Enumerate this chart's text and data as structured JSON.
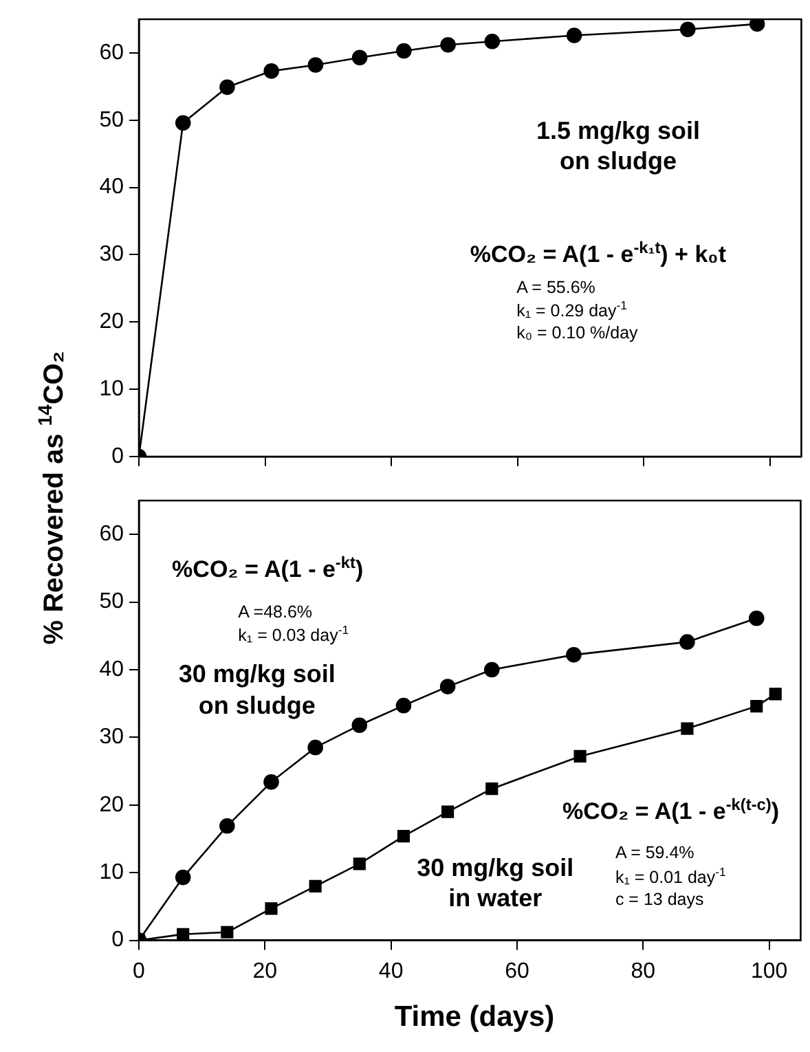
{
  "chart_data": [
    {
      "type": "line",
      "ylabel": "% Recovered as $^{14}$CO₂",
      "xlim": [
        0,
        105
      ],
      "xticks": [
        0,
        20,
        40,
        60,
        80,
        100
      ],
      "ylim": [
        0,
        65
      ],
      "yticks": [
        0,
        10,
        20,
        30,
        40,
        50,
        60
      ],
      "tick_labels": "y",
      "grid": false,
      "legend": false,
      "line_style": "solid",
      "annotations": [
        "1.5 mg/kg soil\non sludge",
        "%CO₂ = A(1 - e$^{-k₁t}$) + k₀t",
        "A = 55.6%\nk₁ = 0.29 day$^{-1}$\nk₀ = 0.10 %/day"
      ],
      "series": [
        {
          "color": "#000000",
          "marker": "circle",
          "x": [
            0,
            7,
            14,
            21,
            28,
            35,
            42,
            49,
            56,
            69,
            87,
            98
          ],
          "values": [
            0,
            49.6,
            54.9,
            57.3,
            58.2,
            59.3,
            60.3,
            61.2,
            61.7,
            62.6,
            63.5,
            64.3
          ]
        }
      ]
    },
    {
      "type": "line",
      "xlabel": "Time (days)",
      "xlim": [
        0,
        105
      ],
      "xticks": [
        0,
        20,
        40,
        60,
        80,
        100
      ],
      "ylim": [
        0,
        65
      ],
      "yticks": [
        0,
        10,
        20,
        30,
        40,
        50,
        60
      ],
      "grid": false,
      "legend": false,
      "line_style": "solid",
      "annotations": [
        "%CO₂ = A(1 - e$^{-kt}$)",
        "A =48.6%\nk₁ = 0.03 day$^{-1}$",
        "30 mg/kg soil\non sludge",
        "30 mg/kg soil\nin water",
        "%CO₂ = A(1 - e$^{-k(t-c)}$)",
        "A = 59.4%\nk₁ = 0.01 day$^{-1}$\nc = 13 days"
      ],
      "series": [
        {
          "color": "#000000",
          "marker": "circle",
          "x": [
            0,
            7,
            14,
            21,
            28,
            35,
            42,
            49,
            56,
            69,
            87,
            98
          ],
          "values": [
            0,
            9.3,
            16.9,
            23.4,
            28.5,
            31.8,
            34.7,
            37.5,
            40.0,
            42.2,
            44.1,
            47.6
          ]
        },
        {
          "color": "#000000",
          "marker": "square",
          "x": [
            0,
            7,
            14,
            21,
            28,
            35,
            42,
            49,
            56,
            70,
            87,
            98,
            101
          ],
          "values": [
            0,
            0.9,
            1.2,
            4.7,
            8.0,
            11.3,
            15.4,
            19.0,
            22.4,
            27.2,
            31.3,
            34.6,
            36.4
          ]
        }
      ]
    }
  ]
}
